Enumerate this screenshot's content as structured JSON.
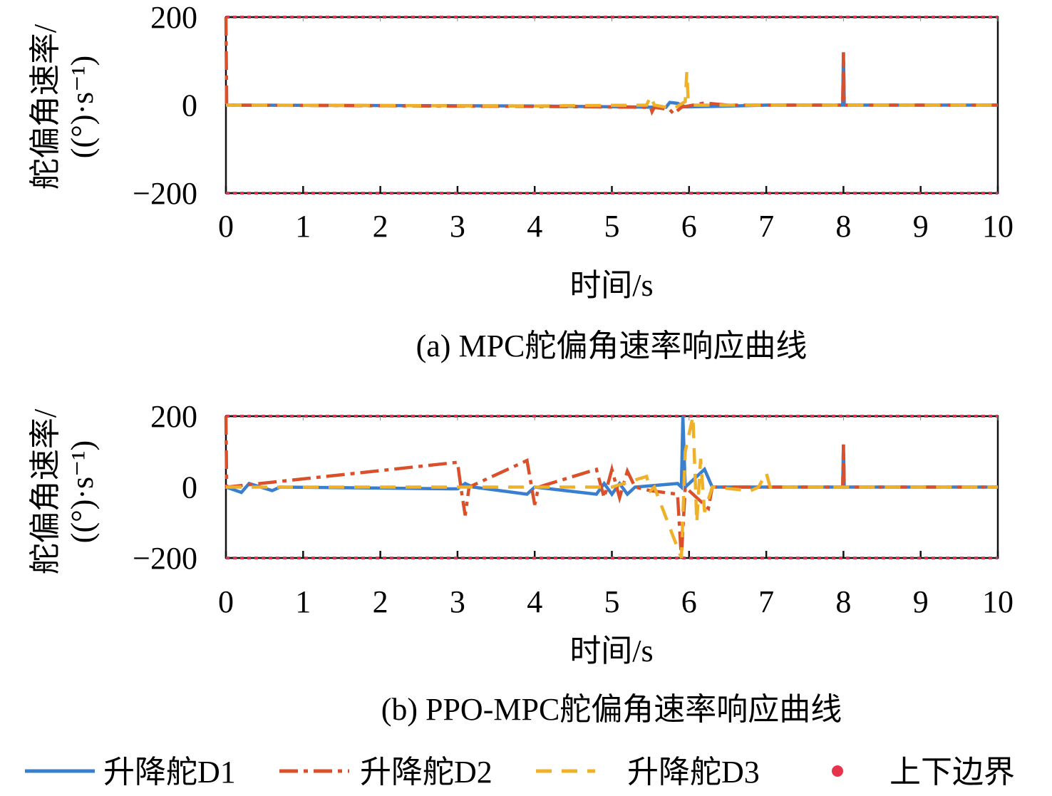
{
  "colors": {
    "D1": "#3a7fce",
    "D2": "#d9502a",
    "D3": "#efb12a",
    "bound": "#e8344a",
    "axis": "#111111"
  },
  "chart_data": [
    {
      "type": "line",
      "caption": "(a) MPC舵偏角速率响应曲线",
      "xlabel": "时间/s",
      "ylabel_line1": "舵偏角速率/",
      "ylabel_line2": "((°)·s⁻¹)",
      "xlim": [
        0,
        10
      ],
      "ylim": [
        -200,
        200
      ],
      "xticks": [
        "0",
        "1",
        "2",
        "3",
        "4",
        "5",
        "6",
        "7",
        "8",
        "9",
        "10"
      ],
      "yticks": [
        "200",
        "0",
        "−200"
      ],
      "ytick_values": [
        200,
        0,
        -200
      ],
      "bounds": [
        200,
        -200
      ],
      "series": [
        {
          "name": "升降舵D1",
          "points": [
            [
              0,
              0
            ],
            [
              4,
              -2
            ],
            [
              5.7,
              -5
            ],
            [
              5.75,
              6
            ],
            [
              5.85,
              4
            ],
            [
              5.95,
              -4
            ],
            [
              6.3,
              -3
            ],
            [
              7,
              0
            ],
            [
              7.99,
              0
            ],
            [
              8,
              120
            ],
            [
              8.01,
              0
            ],
            [
              10,
              0
            ]
          ]
        },
        {
          "name": "升降舵D2",
          "points": [
            [
              0,
              200
            ],
            [
              0.01,
              0
            ],
            [
              4,
              -3
            ],
            [
              5.5,
              -5
            ],
            [
              5.52,
              -15
            ],
            [
              5.55,
              -5
            ],
            [
              5.75,
              -10
            ],
            [
              5.8,
              -20
            ],
            [
              5.9,
              -5
            ],
            [
              6.2,
              5
            ],
            [
              6.5,
              0
            ],
            [
              7.99,
              0
            ],
            [
              8,
              120
            ],
            [
              8.01,
              0
            ],
            [
              10,
              0
            ]
          ]
        },
        {
          "name": "升降舵D3",
          "points": [
            [
              0,
              0
            ],
            [
              4,
              -2
            ],
            [
              5.45,
              0
            ],
            [
              5.5,
              20
            ],
            [
              5.55,
              0
            ],
            [
              5.8,
              -8
            ],
            [
              5.95,
              8
            ],
            [
              5.97,
              75
            ],
            [
              5.99,
              8
            ],
            [
              6.05,
              0
            ],
            [
              10,
              0
            ]
          ]
        }
      ]
    },
    {
      "type": "line",
      "caption": "(b) PPO-MPC舵偏角速率响应曲线",
      "xlabel": "时间/s",
      "ylabel_line1": "舵偏角速率/",
      "ylabel_line2": "((°)·s⁻¹)",
      "xlim": [
        0,
        10
      ],
      "ylim": [
        -200,
        200
      ],
      "xticks": [
        "0",
        "1",
        "2",
        "3",
        "4",
        "5",
        "6",
        "7",
        "8",
        "9",
        "10"
      ],
      "yticks": [
        "200",
        "0",
        "−200"
      ],
      "ytick_values": [
        200,
        0,
        -200
      ],
      "bounds": [
        200,
        -200
      ],
      "series": [
        {
          "name": "升降舵D1",
          "points": [
            [
              0,
              0
            ],
            [
              0.2,
              -15
            ],
            [
              0.3,
              10
            ],
            [
              0.6,
              -10
            ],
            [
              0.7,
              0
            ],
            [
              3,
              -5
            ],
            [
              3.1,
              10
            ],
            [
              3.2,
              0
            ],
            [
              3.9,
              -20
            ],
            [
              4,
              0
            ],
            [
              4.8,
              -20
            ],
            [
              4.9,
              10
            ],
            [
              5,
              -20
            ],
            [
              5.1,
              10
            ],
            [
              5.2,
              -20
            ],
            [
              5.3,
              0
            ],
            [
              5.85,
              10
            ],
            [
              5.9,
              0
            ],
            [
              5.92,
              200
            ],
            [
              5.95,
              0
            ],
            [
              6.2,
              50
            ],
            [
              6.3,
              0
            ],
            [
              7.99,
              0
            ],
            [
              8,
              120
            ],
            [
              8.01,
              0
            ],
            [
              10,
              0
            ]
          ]
        },
        {
          "name": "升降舵D2",
          "points": [
            [
              0,
              200
            ],
            [
              0.01,
              0
            ],
            [
              3,
              70
            ],
            [
              3.05,
              -10
            ],
            [
              3.1,
              -80
            ],
            [
              3.15,
              0
            ],
            [
              3.9,
              75
            ],
            [
              4,
              -50
            ],
            [
              4.05,
              0
            ],
            [
              4.8,
              50
            ],
            [
              4.9,
              -30
            ],
            [
              5,
              50
            ],
            [
              5.1,
              -30
            ],
            [
              5.2,
              45
            ],
            [
              5.3,
              0
            ],
            [
              5.5,
              -10
            ],
            [
              5.85,
              -20
            ],
            [
              5.9,
              -200
            ],
            [
              5.95,
              0
            ],
            [
              6.25,
              -60
            ],
            [
              6.3,
              0
            ],
            [
              7.99,
              0
            ],
            [
              8,
              120
            ],
            [
              8.01,
              0
            ],
            [
              10,
              0
            ]
          ]
        },
        {
          "name": "升降舵D3",
          "points": [
            [
              0,
              0
            ],
            [
              5,
              0
            ],
            [
              5.45,
              30
            ],
            [
              5.5,
              -10
            ],
            [
              5.55,
              0
            ],
            [
              5.9,
              -200
            ],
            [
              5.95,
              100
            ],
            [
              6.05,
              200
            ],
            [
              6.1,
              -100
            ],
            [
              6.15,
              80
            ],
            [
              6.2,
              -70
            ],
            [
              6.3,
              0
            ],
            [
              6.8,
              -10
            ],
            [
              6.9,
              0
            ],
            [
              7,
              40
            ],
            [
              7.05,
              0
            ],
            [
              10,
              0
            ]
          ]
        }
      ]
    }
  ],
  "legend": [
    {
      "label": "升降舵D1",
      "style": "solid"
    },
    {
      "label": "升降舵D2",
      "style": "dashdot"
    },
    {
      "label": "升降舵D3",
      "style": "dashed"
    },
    {
      "label": "上下边界",
      "style": "marker"
    }
  ]
}
